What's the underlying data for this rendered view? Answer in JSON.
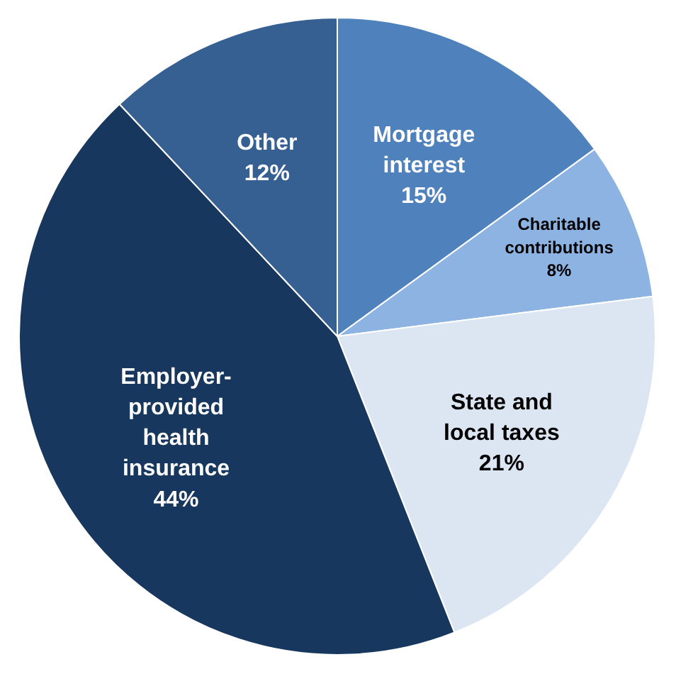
{
  "chart_data": {
    "type": "pie",
    "categories": [
      "Mortgage interest",
      "Charitable contributions",
      "State and local taxes",
      "Employer-provided health insurance",
      "Other"
    ],
    "values": [
      15,
      8,
      21,
      44,
      12
    ],
    "colors": [
      "#4f81bd",
      "#8db3e2",
      "#dce6f2",
      "#17375e",
      "#366092"
    ],
    "value_labels": [
      "15%",
      "8%",
      "21%",
      "44%",
      "12%"
    ],
    "legend": false
  }
}
